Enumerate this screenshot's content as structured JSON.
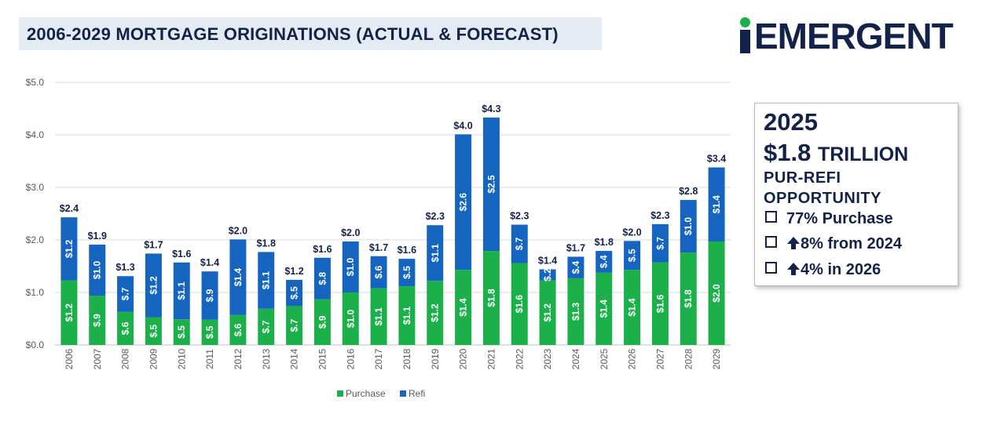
{
  "title": "2006-2029 MORTGAGE ORIGINATIONS (ACTUAL & FORECAST)",
  "logo": {
    "text": "EMERGENT",
    "colors": {
      "navy": "#13224a",
      "green": "#1cb04a"
    }
  },
  "info_box": {
    "year": "2025",
    "amount": "$1.8",
    "amount_unit": "TRILLION",
    "line1": "PUR-REFI",
    "line2": "OPPORTUNITY",
    "bullets": [
      {
        "icon": "checkbox-icon",
        "arrow": false,
        "text": "77% Purchase"
      },
      {
        "icon": "checkbox-icon",
        "arrow": true,
        "text": "8% from 2024"
      },
      {
        "icon": "checkbox-icon",
        "arrow": true,
        "text": "4% in 2026"
      }
    ]
  },
  "chart_data": {
    "type": "bar",
    "stacked": true,
    "title": "2006-2029 MORTGAGE ORIGINATIONS (ACTUAL & FORECAST)",
    "xlabel": "",
    "ylabel": "",
    "ylim": [
      0,
      5
    ],
    "yticks": [
      "$0.0",
      "$1.0",
      "$2.0",
      "$3.0",
      "$4.0",
      "$5.0"
    ],
    "ytick_values": [
      0,
      1,
      2,
      3,
      4,
      5
    ],
    "grid": true,
    "legend_position": "bottom-center",
    "categories": [
      "2006",
      "2007",
      "2008",
      "2009",
      "2010",
      "2011",
      "2012",
      "2013",
      "2014",
      "2015",
      "2016",
      "2017",
      "2018",
      "2019",
      "2020",
      "2021",
      "2022",
      "2023",
      "2024",
      "2025",
      "2026",
      "2027",
      "2028",
      "2029"
    ],
    "series": [
      {
        "name": "Purchase",
        "color": "#1cb04a",
        "values": [
          1.23,
          0.94,
          0.63,
          0.53,
          0.49,
          0.48,
          0.57,
          0.69,
          0.74,
          0.87,
          1.0,
          1.08,
          1.12,
          1.22,
          1.43,
          1.79,
          1.56,
          1.23,
          1.27,
          1.38,
          1.43,
          1.57,
          1.76,
          1.97
        ],
        "labels": [
          "$1.2",
          "$.9",
          "$.6",
          "$.5",
          "$.5",
          "$.5",
          "$.6",
          "$.7",
          "$.7",
          "$.9",
          "$1.0",
          "$1.1",
          "$1.1",
          "$1.2",
          "$1.4",
          "$1.8",
          "$1.6",
          "$1.2",
          "$1.3",
          "$1.4",
          "$1.4",
          "$1.6",
          "$1.8",
          "$2.0"
        ]
      },
      {
        "name": "Refi",
        "color": "#1565c0",
        "values": [
          1.2,
          0.97,
          0.68,
          1.21,
          1.08,
          0.92,
          1.44,
          1.08,
          0.5,
          0.79,
          0.97,
          0.61,
          0.52,
          1.06,
          2.58,
          2.54,
          0.73,
          0.21,
          0.41,
          0.41,
          0.55,
          0.73,
          1.0,
          1.41
        ],
        "labels": [
          "$1.2",
          "$1.0",
          "$.7",
          "$1.2",
          "$1.1",
          "$.9",
          "$1.4",
          "$1.1",
          "$.5",
          "$.8",
          "$1.0",
          "$.6",
          "$.5",
          "$1.1",
          "$2.6",
          "$2.5",
          "$.7",
          "$.2",
          "$.4",
          "$.4",
          "$.5",
          "$.7",
          "$1.0",
          "$1.4"
        ]
      }
    ],
    "totals": [
      "$2.4",
      "$1.9",
      "$1.3",
      "$1.7",
      "$1.6",
      "$1.4",
      "$2.0",
      "$1.8",
      "$1.2",
      "$1.6",
      "$2.0",
      "$1.7",
      "$1.6",
      "$2.3",
      "$4.0",
      "$4.3",
      "$2.3",
      "$1.4",
      "$1.7",
      "$1.8",
      "$2.0",
      "$2.3",
      "$2.8",
      "$3.4"
    ]
  }
}
